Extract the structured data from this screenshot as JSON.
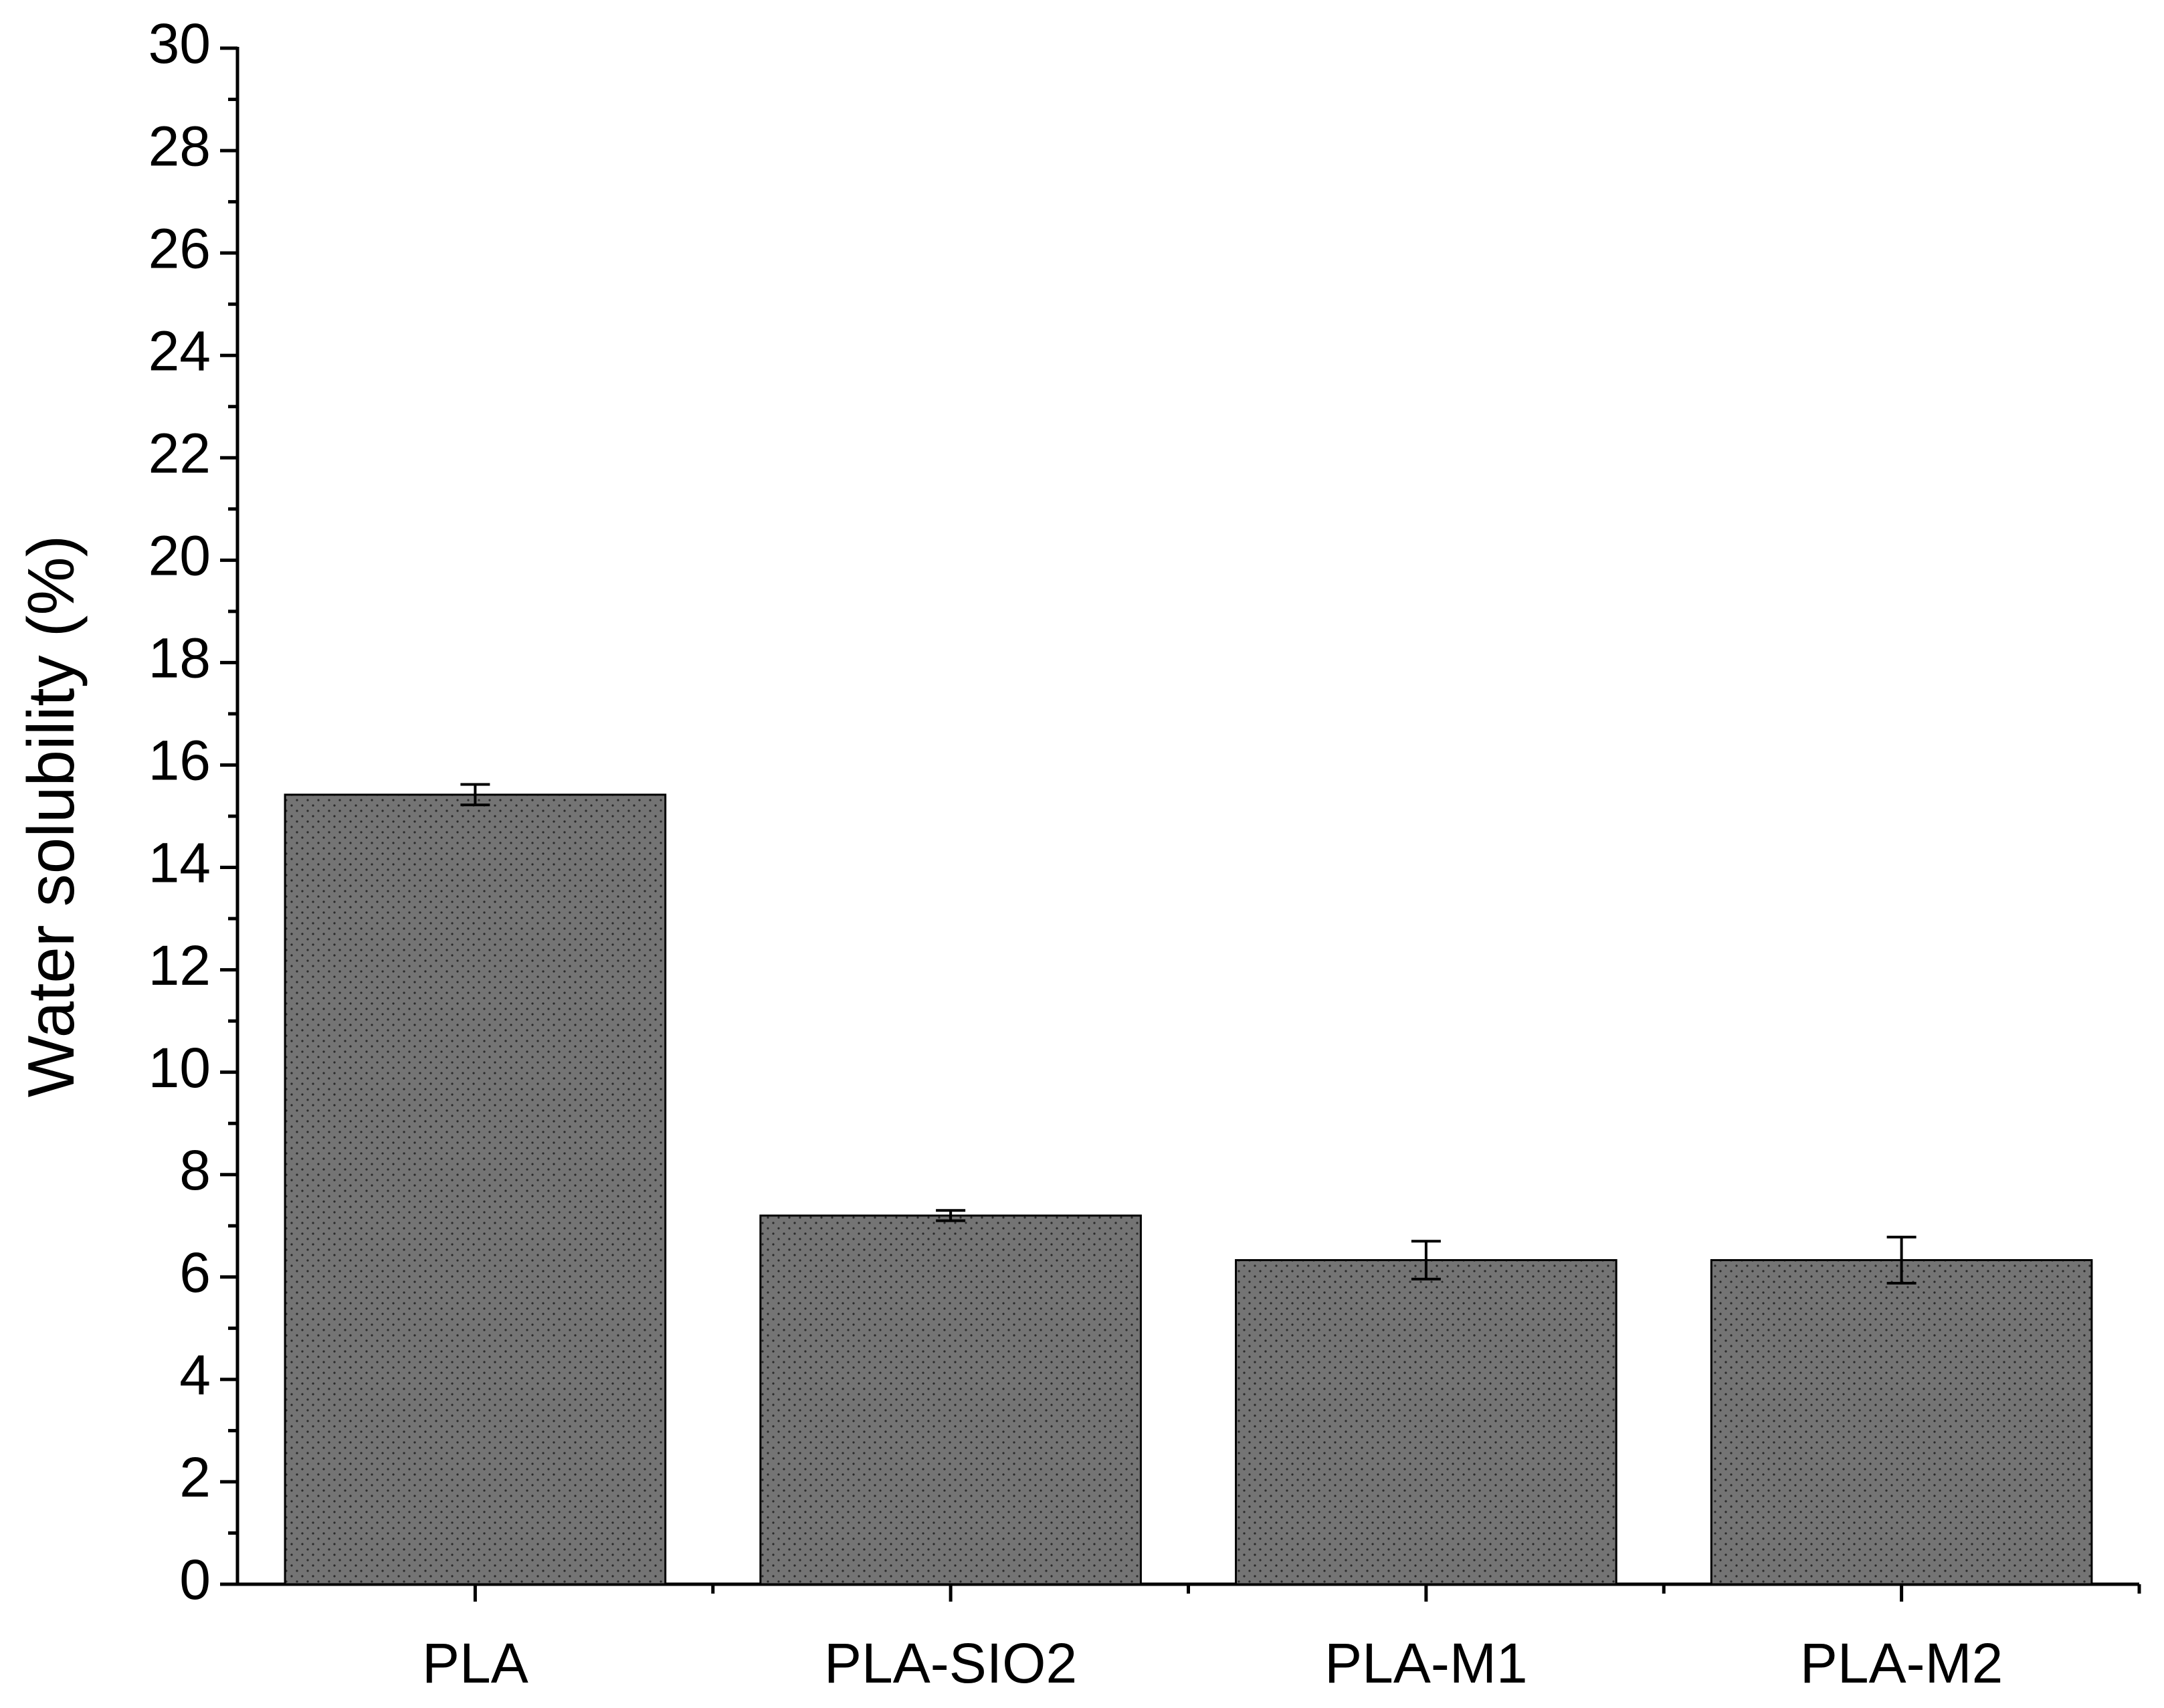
{
  "chart_data": {
    "type": "bar",
    "y_label": "Water solubility (%)",
    "categories": [
      "PLA",
      "PLA-SIO2",
      "PLA-M1",
      "PLA-M2"
    ],
    "values": [
      15.42,
      7.2,
      6.33,
      6.33
    ],
    "errors": [
      0.2,
      0.1,
      0.37,
      0.45
    ],
    "color": "#747474",
    "ylim": [
      0,
      30
    ],
    "yticks": [
      0,
      2,
      4,
      6,
      8,
      10,
      12,
      14,
      16,
      18,
      20,
      22,
      24,
      26,
      28,
      30
    ],
    "minor_ticks": true,
    "grid": false
  }
}
